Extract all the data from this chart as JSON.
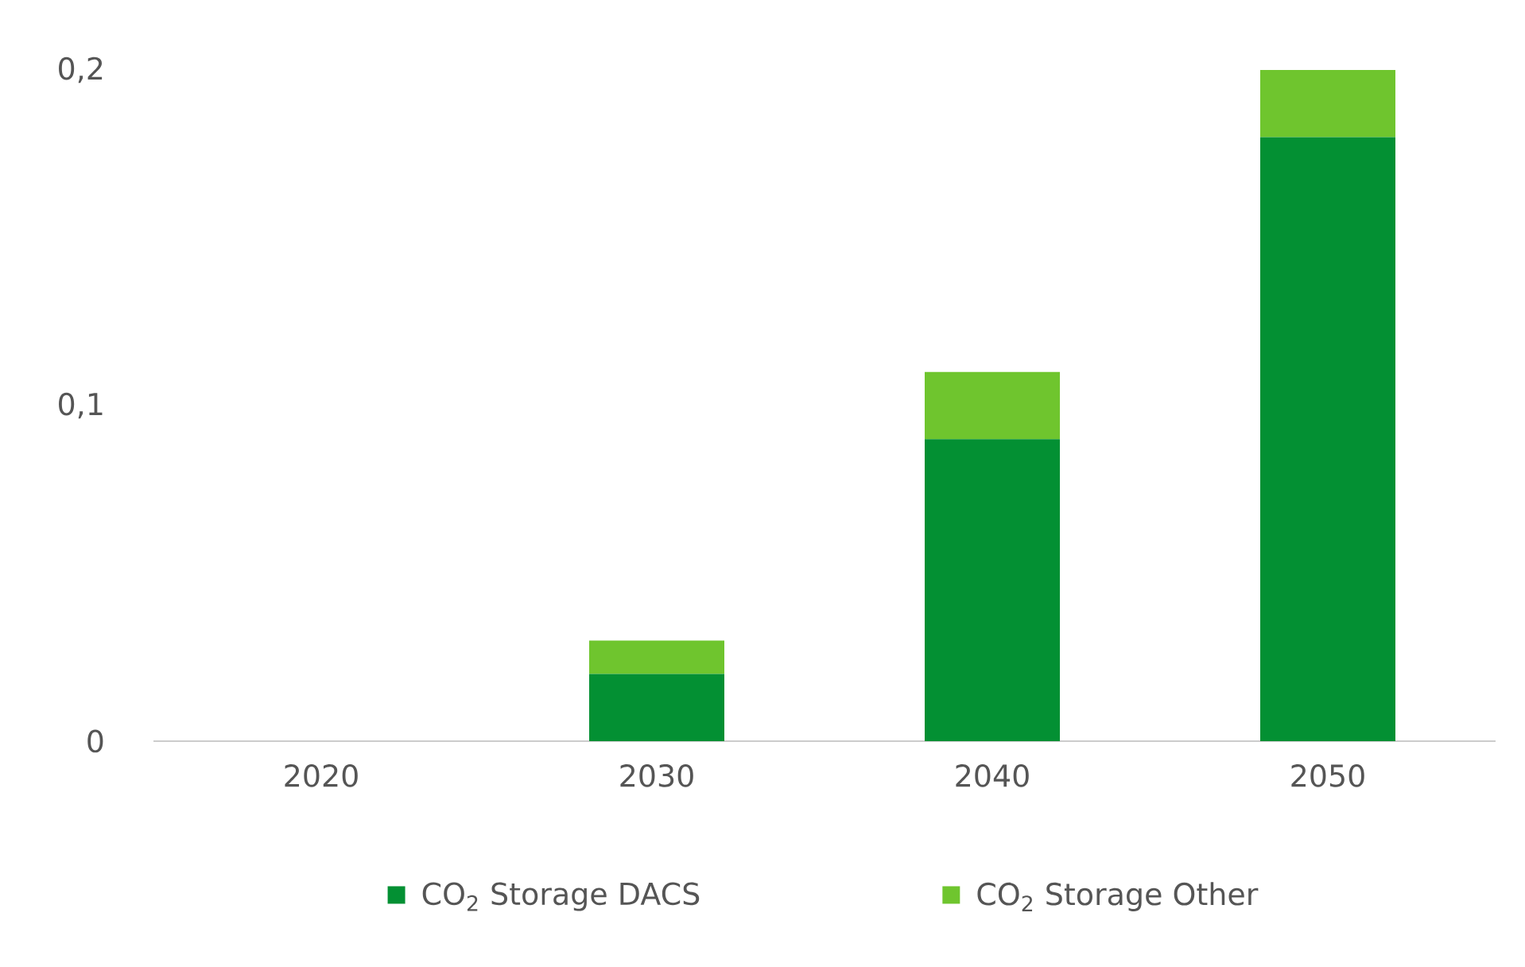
{
  "chart_data": {
    "type": "bar",
    "stacked": true,
    "categories": [
      "2020",
      "2030",
      "2040",
      "2050"
    ],
    "series": [
      {
        "name": "CO$_{2}$ Storage DACS",
        "color": "#039033",
        "values": [
          0,
          0.02,
          0.09,
          0.18
        ]
      },
      {
        "name": "CO$_{2}$ Storage Other",
        "color": "#6fc52e",
        "values": [
          0,
          0.01,
          0.02,
          0.02
        ]
      }
    ],
    "ylim": [
      0,
      0.2
    ],
    "yticks": [
      {
        "value": 0,
        "label": "0"
      },
      {
        "value": 0.1,
        "label": "0,1"
      },
      {
        "value": 0.2,
        "label": "0,2"
      }
    ],
    "legend": "bottom"
  }
}
